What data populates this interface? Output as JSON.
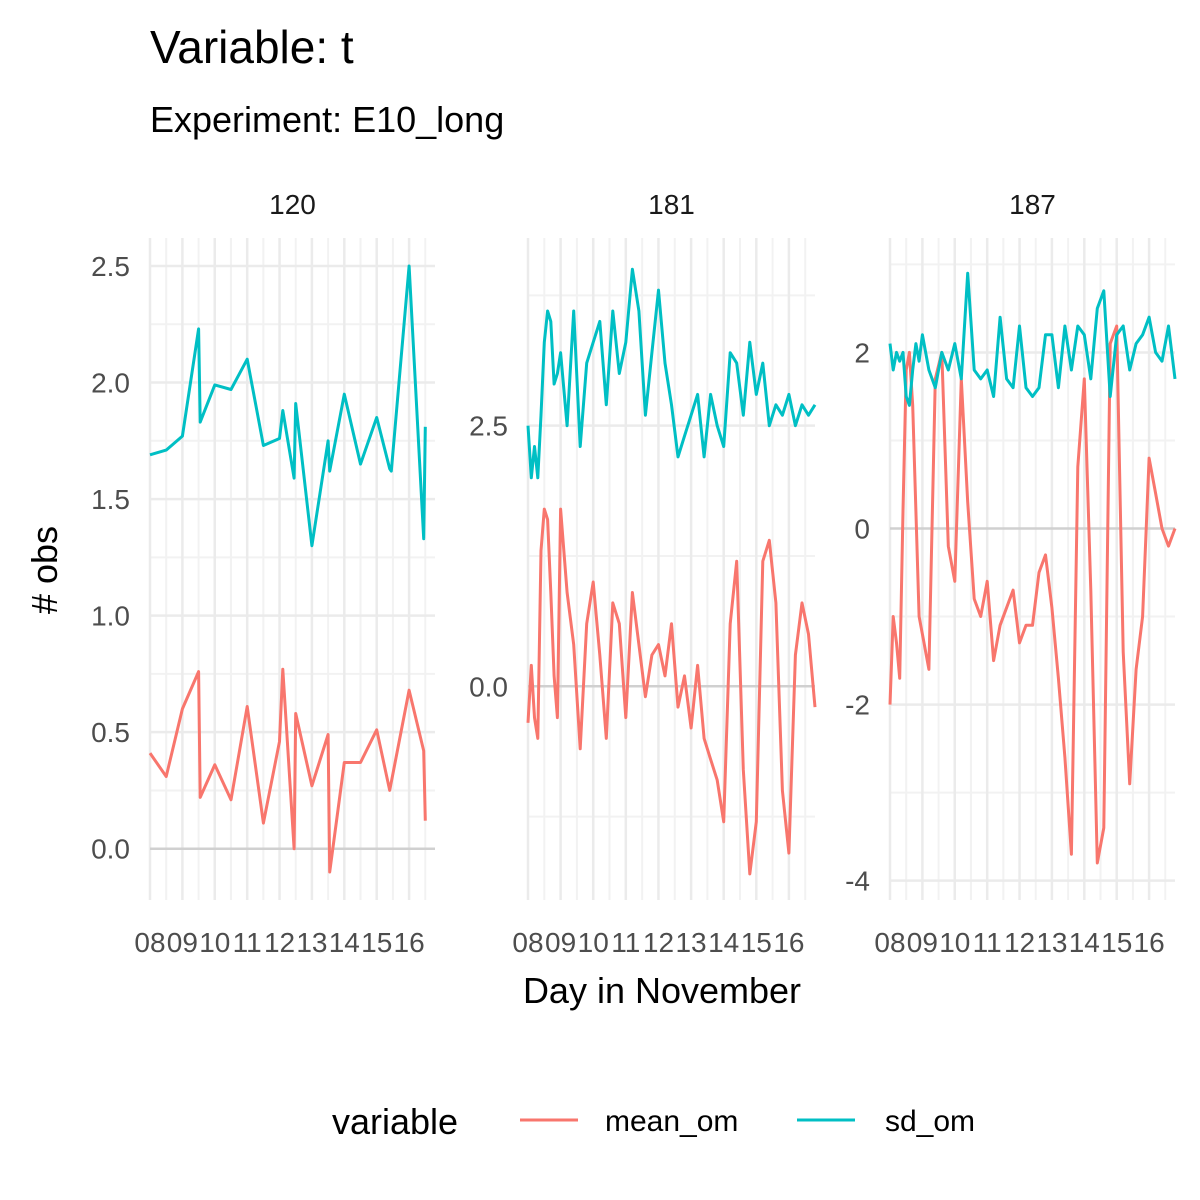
{
  "title": "Variable: t",
  "subtitle": "Experiment: E10_long",
  "chart_data": {
    "type": "line",
    "xlabel": "Day in November",
    "ylabel": "# obs",
    "x_range": [
      8,
      16.8
    ],
    "x_ticks": [
      "08",
      "09",
      "10",
      "11",
      "12",
      "13",
      "14",
      "15",
      "16"
    ],
    "legend": {
      "title": "variable",
      "position": "bottom",
      "entries": [
        {
          "name": "mean_om",
          "color": "#F8766D"
        },
        {
          "name": "sd_om",
          "color": "#00BFC4"
        }
      ]
    },
    "facets": [
      {
        "label": "120",
        "ylim": [
          -0.22,
          2.62
        ],
        "y_ticks": [
          0.0,
          0.5,
          1.0,
          1.5,
          2.0,
          2.5
        ],
        "y_tick_labels": [
          "0.0",
          "0.5",
          "1.0",
          "1.5",
          "2.0",
          "2.5"
        ],
        "series": [
          {
            "name": "mean_om",
            "x": [
              8.0,
              8.5,
              9.0,
              9.5,
              9.55,
              10.0,
              10.5,
              11.0,
              11.5,
              12.0,
              12.1,
              12.45,
              12.5,
              13.0,
              13.5,
              13.55,
              14.0,
              14.5,
              15.0,
              15.4,
              16.0,
              16.45,
              16.5
            ],
            "y": [
              0.41,
              0.31,
              0.6,
              0.76,
              0.22,
              0.36,
              0.21,
              0.61,
              0.11,
              0.46,
              0.77,
              0.0,
              0.58,
              0.27,
              0.49,
              -0.1,
              0.37,
              0.37,
              0.51,
              0.25,
              0.68,
              0.42,
              0.12
            ]
          },
          {
            "name": "sd_om",
            "x": [
              8.0,
              8.5,
              9.0,
              9.5,
              9.55,
              10.0,
              10.5,
              11.0,
              11.5,
              12.0,
              12.1,
              12.45,
              12.5,
              13.0,
              13.5,
              13.55,
              14.0,
              14.5,
              15.0,
              15.4,
              15.45,
              16.0,
              16.45,
              16.5
            ],
            "y": [
              1.69,
              1.71,
              1.77,
              2.23,
              1.83,
              1.99,
              1.97,
              2.1,
              1.73,
              1.76,
              1.88,
              1.59,
              1.91,
              1.3,
              1.75,
              1.62,
              1.95,
              1.65,
              1.85,
              1.63,
              1.62,
              2.5,
              1.33,
              1.81
            ]
          }
        ]
      },
      {
        "label": "181",
        "ylim": [
          -2.05,
          4.3
        ],
        "y_ticks": [
          0.0,
          2.5
        ],
        "y_tick_labels": [
          "0.0",
          "2.5"
        ],
        "series": [
          {
            "name": "mean_om",
            "x": [
              8.0,
              8.1,
              8.2,
              8.3,
              8.4,
              8.5,
              8.6,
              8.7,
              8.8,
              8.9,
              9.0,
              9.2,
              9.4,
              9.6,
              9.8,
              10.0,
              10.2,
              10.4,
              10.6,
              10.8,
              11.0,
              11.2,
              11.4,
              11.6,
              11.8,
              12.0,
              12.2,
              12.4,
              12.6,
              12.8,
              13.0,
              13.2,
              13.4,
              13.6,
              13.8,
              14.0,
              14.2,
              14.4,
              14.6,
              14.8,
              15.0,
              15.2,
              15.4,
              15.6,
              15.8,
              16.0,
              16.2,
              16.4,
              16.6,
              16.8
            ],
            "y": [
              -0.35,
              0.2,
              -0.3,
              -0.5,
              1.3,
              1.7,
              1.6,
              0.9,
              0.1,
              -0.3,
              1.7,
              0.9,
              0.4,
              -0.6,
              0.6,
              1.0,
              0.3,
              -0.5,
              0.8,
              0.6,
              -0.3,
              0.9,
              0.4,
              -0.1,
              0.3,
              0.4,
              0.1,
              0.6,
              -0.2,
              0.1,
              -0.4,
              0.2,
              -0.5,
              -0.7,
              -0.9,
              -1.3,
              0.6,
              1.2,
              -0.8,
              -1.8,
              -1.3,
              1.2,
              1.4,
              0.8,
              -1.0,
              -1.6,
              0.3,
              0.8,
              0.5,
              -0.2
            ]
          },
          {
            "name": "sd_om",
            "x": [
              8.0,
              8.1,
              8.2,
              8.3,
              8.4,
              8.5,
              8.6,
              8.7,
              8.8,
              8.9,
              9.0,
              9.2,
              9.4,
              9.6,
              9.8,
              10.0,
              10.2,
              10.4,
              10.6,
              10.8,
              11.0,
              11.2,
              11.4,
              11.6,
              11.8,
              12.0,
              12.2,
              12.4,
              12.6,
              12.8,
              13.0,
              13.2,
              13.4,
              13.6,
              13.8,
              14.0,
              14.2,
              14.4,
              14.6,
              14.8,
              15.0,
              15.2,
              15.4,
              15.6,
              15.8,
              16.0,
              16.2,
              16.4,
              16.6,
              16.8
            ],
            "y": [
              2.5,
              2.0,
              2.3,
              2.0,
              2.6,
              3.3,
              3.6,
              3.5,
              2.9,
              3.0,
              3.2,
              2.5,
              3.6,
              2.3,
              3.1,
              3.3,
              3.5,
              2.7,
              3.6,
              3.0,
              3.3,
              4.0,
              3.6,
              2.6,
              3.2,
              3.8,
              3.1,
              2.7,
              2.2,
              2.4,
              2.6,
              2.8,
              2.2,
              2.8,
              2.5,
              2.3,
              3.2,
              3.1,
              2.6,
              3.3,
              2.8,
              3.1,
              2.5,
              2.7,
              2.6,
              2.8,
              2.5,
              2.7,
              2.6,
              2.7
            ]
          }
        ]
      },
      {
        "label": "187",
        "ylim": [
          -4.22,
          3.3
        ],
        "y_ticks": [
          -4,
          -2,
          0,
          2
        ],
        "y_tick_labels": [
          "-4",
          "-2",
          "0",
          "2"
        ],
        "series": [
          {
            "name": "mean_om",
            "x": [
              8.0,
              8.1,
              8.2,
              8.3,
              8.4,
              8.5,
              8.6,
              8.7,
              8.8,
              8.9,
              9.0,
              9.2,
              9.4,
              9.6,
              9.8,
              10.0,
              10.2,
              10.4,
              10.6,
              10.8,
              11.0,
              11.2,
              11.4,
              11.6,
              11.8,
              12.0,
              12.2,
              12.4,
              12.6,
              12.8,
              13.0,
              13.2,
              13.4,
              13.6,
              13.8,
              14.0,
              14.2,
              14.4,
              14.6,
              14.8,
              15.0,
              15.2,
              15.4,
              15.6,
              15.8,
              16.0,
              16.2,
              16.4,
              16.6,
              16.8
            ],
            "y": [
              -2.0,
              -1.0,
              -1.3,
              -1.7,
              0.2,
              1.8,
              2.0,
              1.4,
              0.2,
              -1.0,
              -1.2,
              -1.6,
              1.7,
              2.0,
              -0.2,
              -0.6,
              1.7,
              0.3,
              -0.8,
              -1.0,
              -0.6,
              -1.5,
              -1.1,
              -0.9,
              -0.7,
              -1.3,
              -1.1,
              -1.1,
              -0.5,
              -0.3,
              -0.9,
              -1.7,
              -2.6,
              -3.7,
              0.7,
              1.7,
              -0.7,
              -3.8,
              -3.4,
              2.1,
              2.3,
              -1.4,
              -2.9,
              -1.6,
              -1.0,
              0.8,
              0.4,
              0.0,
              -0.2,
              0.0
            ]
          },
          {
            "name": "sd_om",
            "x": [
              8.0,
              8.1,
              8.2,
              8.3,
              8.4,
              8.5,
              8.6,
              8.7,
              8.8,
              8.9,
              9.0,
              9.2,
              9.4,
              9.6,
              9.8,
              10.0,
              10.2,
              10.4,
              10.6,
              10.8,
              11.0,
              11.2,
              11.4,
              11.6,
              11.8,
              12.0,
              12.2,
              12.4,
              12.6,
              12.8,
              13.0,
              13.2,
              13.4,
              13.6,
              13.8,
              14.0,
              14.2,
              14.4,
              14.6,
              14.8,
              15.0,
              15.2,
              15.4,
              15.6,
              15.8,
              16.0,
              16.2,
              16.4,
              16.6,
              16.8
            ],
            "y": [
              2.1,
              1.8,
              2.0,
              1.9,
              2.0,
              1.5,
              1.4,
              1.8,
              2.1,
              1.9,
              2.2,
              1.8,
              1.6,
              2.0,
              1.8,
              2.1,
              1.7,
              2.9,
              1.8,
              1.7,
              1.8,
              1.5,
              2.4,
              1.7,
              1.6,
              2.3,
              1.6,
              1.5,
              1.6,
              2.2,
              2.2,
              1.6,
              2.3,
              1.8,
              2.3,
              2.2,
              1.7,
              2.5,
              2.7,
              1.5,
              2.2,
              2.3,
              1.8,
              2.1,
              2.2,
              2.4,
              2.0,
              1.9,
              2.3,
              1.7
            ]
          }
        ]
      }
    ]
  }
}
